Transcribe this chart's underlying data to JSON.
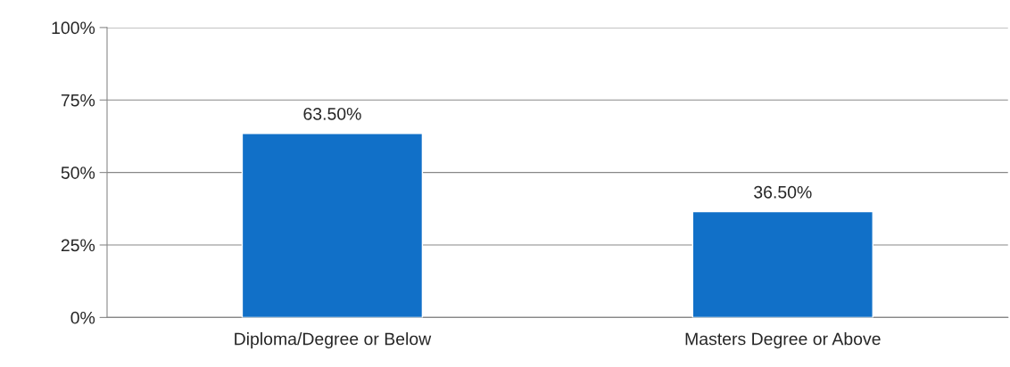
{
  "chart_data": {
    "type": "bar",
    "categories": [
      "Diploma/Degree or Below",
      "Masters Degree or Above"
    ],
    "values": [
      63.5,
      36.5
    ],
    "value_labels": [
      "63.50%",
      "36.50%"
    ],
    "color": "#1170c8",
    "ylim": [
      0,
      100
    ],
    "yticks": [
      {
        "value": 0,
        "label": "0%"
      },
      {
        "value": 25,
        "label": "25%"
      },
      {
        "value": 50,
        "label": "50%"
      },
      {
        "value": 75,
        "label": "75%"
      },
      {
        "value": 100,
        "label": "100%"
      }
    ],
    "grid": "y"
  }
}
